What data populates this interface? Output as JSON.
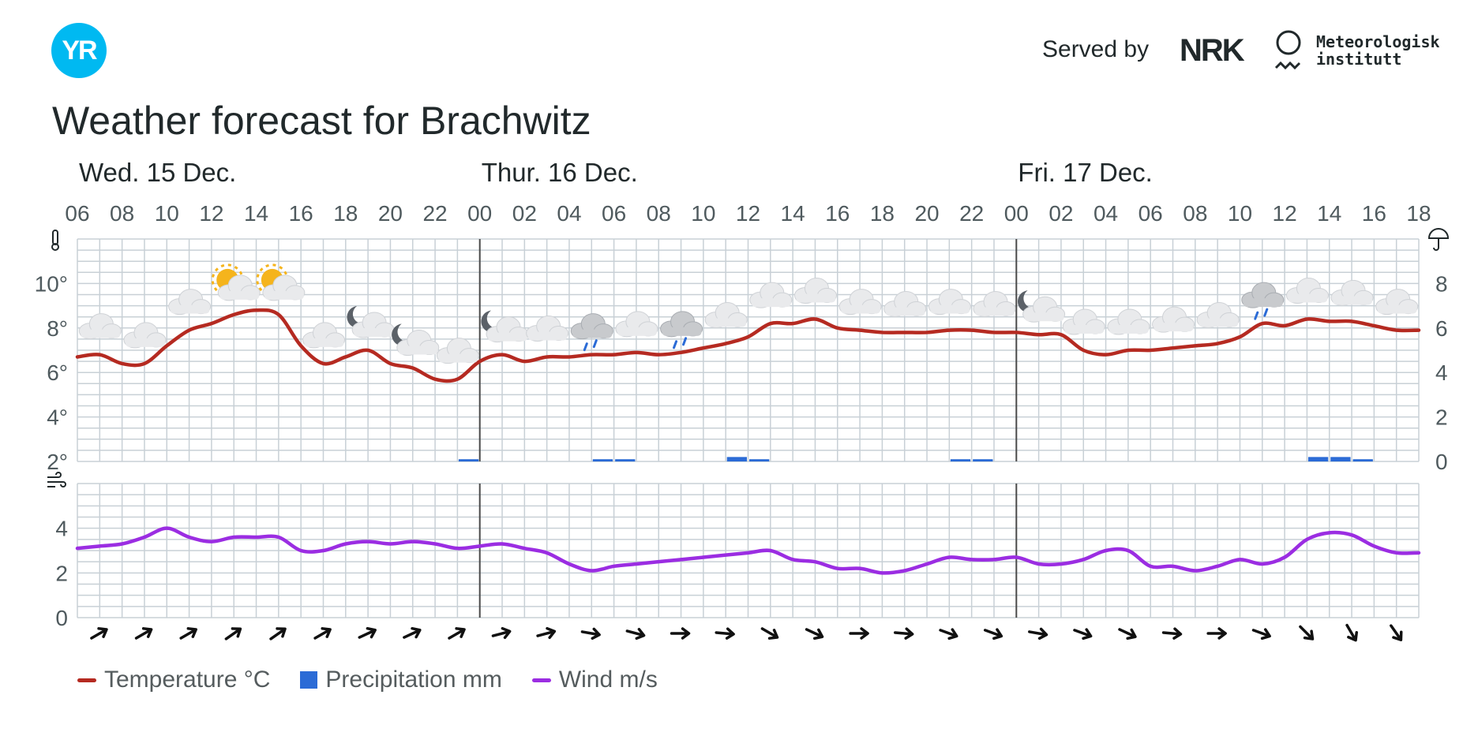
{
  "header": {
    "logo_text": "YR",
    "served_by": "Served by",
    "nrk_text": "NRK",
    "met_line1": "Meteorologisk",
    "met_line2": "institutt"
  },
  "title": "Weather forecast for Brachwitz",
  "colors": {
    "temperature": "#b52a21",
    "precipitation": "#2b6bd6",
    "wind": "#9b2de2",
    "grid": "#c8d0d6",
    "day_line": "#4a4a4a",
    "logo": "#00b9f1"
  },
  "chart_data": {
    "type": "line",
    "days": [
      {
        "label": "Wed. 15 Dec.",
        "start_index": 0
      },
      {
        "label": "Thur. 16 Dec.",
        "start_index": 18
      },
      {
        "label": "Fri. 17 Dec.",
        "start_index": 42
      }
    ],
    "time_ticks": [
      "06",
      "08",
      "10",
      "12",
      "14",
      "16",
      "18",
      "20",
      "22",
      "00",
      "02",
      "04",
      "06",
      "08",
      "10",
      "12",
      "14",
      "16",
      "18",
      "20",
      "22",
      "00",
      "02",
      "04",
      "06",
      "08",
      "10",
      "12",
      "14",
      "16",
      "18"
    ],
    "hours": [
      "06",
      "07",
      "08",
      "09",
      "10",
      "11",
      "12",
      "13",
      "14",
      "15",
      "16",
      "17",
      "18",
      "19",
      "20",
      "21",
      "22",
      "23",
      "00",
      "01",
      "02",
      "03",
      "04",
      "05",
      "06",
      "07",
      "08",
      "09",
      "10",
      "11",
      "12",
      "13",
      "14",
      "15",
      "16",
      "17",
      "18",
      "19",
      "20",
      "21",
      "22",
      "23",
      "00",
      "01",
      "02",
      "03",
      "04",
      "05",
      "06",
      "07",
      "08",
      "09",
      "10",
      "11",
      "12",
      "13",
      "14",
      "15",
      "16",
      "17",
      "18"
    ],
    "temperature": {
      "name": "Temperature °C",
      "axis_ticks": [
        "2°",
        "4°",
        "6°",
        "8°",
        "10°"
      ],
      "ylim": [
        2,
        12
      ],
      "values": [
        6.7,
        6.8,
        6.4,
        6.4,
        7.2,
        7.9,
        8.2,
        8.6,
        8.8,
        8.6,
        7.2,
        6.4,
        6.7,
        7.0,
        6.4,
        6.2,
        5.7,
        5.7,
        6.5,
        6.8,
        6.5,
        6.7,
        6.7,
        6.8,
        6.8,
        6.9,
        6.8,
        6.9,
        7.1,
        7.3,
        7.6,
        8.2,
        8.2,
        8.4,
        8.0,
        7.9,
        7.8,
        7.8,
        7.8,
        7.9,
        7.9,
        7.8,
        7.8,
        7.7,
        7.7,
        7.0,
        6.8,
        7.0,
        7.0,
        7.1,
        7.2,
        7.3,
        7.6,
        8.2,
        8.1,
        8.4,
        8.3,
        8.3,
        8.1,
        7.9,
        7.9
      ]
    },
    "precipitation": {
      "name": "Precipitation mm",
      "axis_ticks": [
        "0",
        "2",
        "4",
        "6",
        "8"
      ],
      "ylim": [
        0,
        10
      ],
      "values": [
        0,
        0,
        0,
        0,
        0,
        0,
        0,
        0,
        0,
        0,
        0,
        0,
        0,
        0,
        0,
        0,
        0,
        0.1,
        0,
        0,
        0,
        0,
        0,
        0.1,
        0.1,
        0,
        0,
        0,
        0,
        0.2,
        0.1,
        0,
        0,
        0,
        0,
        0,
        0,
        0,
        0,
        0.1,
        0.1,
        0,
        0,
        0,
        0,
        0,
        0,
        0,
        0,
        0,
        0,
        0,
        0,
        0,
        0,
        0.2,
        0.2,
        0.1,
        0,
        0,
        0
      ]
    },
    "wind": {
      "name": "Wind m/s",
      "axis_ticks": [
        "0",
        "2",
        "4"
      ],
      "ylim": [
        0,
        6
      ],
      "values": [
        3.1,
        3.2,
        3.3,
        3.6,
        4.0,
        3.6,
        3.4,
        3.6,
        3.6,
        3.6,
        3.0,
        3.0,
        3.3,
        3.4,
        3.3,
        3.4,
        3.3,
        3.1,
        3.2,
        3.3,
        3.1,
        2.9,
        2.4,
        2.1,
        2.3,
        2.4,
        2.5,
        2.6,
        2.7,
        2.8,
        2.9,
        3.0,
        2.6,
        2.5,
        2.2,
        2.2,
        2.0,
        2.1,
        2.4,
        2.7,
        2.6,
        2.6,
        2.7,
        2.4,
        2.4,
        2.6,
        3.0,
        3.0,
        2.3,
        2.3,
        2.1,
        2.3,
        2.6,
        2.4,
        2.7,
        3.5,
        3.8,
        3.7,
        3.2,
        2.9,
        2.9
      ]
    },
    "weather_symbols": [
      {
        "hour": "06",
        "icon": "cloud"
      },
      {
        "hour": "08",
        "icon": "cloud"
      },
      {
        "hour": "10",
        "icon": "cloud"
      },
      {
        "hour": "12",
        "icon": "partly-sunny"
      },
      {
        "hour": "14",
        "icon": "partly-sunny"
      },
      {
        "hour": "16",
        "icon": "cloud"
      },
      {
        "hour": "18",
        "icon": "partly-moon"
      },
      {
        "hour": "20",
        "icon": "partly-moon"
      },
      {
        "hour": "22",
        "icon": "cloud"
      },
      {
        "hour": "00",
        "icon": "partly-moon"
      },
      {
        "hour": "02",
        "icon": "cloud"
      },
      {
        "hour": "04",
        "icon": "rain-cloud"
      },
      {
        "hour": "06",
        "icon": "cloud"
      },
      {
        "hour": "08",
        "icon": "rain-cloud"
      },
      {
        "hour": "10",
        "icon": "cloud"
      },
      {
        "hour": "12",
        "icon": "cloud"
      },
      {
        "hour": "14",
        "icon": "cloud"
      },
      {
        "hour": "16",
        "icon": "cloud"
      },
      {
        "hour": "18",
        "icon": "cloud"
      },
      {
        "hour": "20",
        "icon": "cloud"
      },
      {
        "hour": "22",
        "icon": "cloud"
      },
      {
        "hour": "00",
        "icon": "partly-moon"
      },
      {
        "hour": "02",
        "icon": "cloud"
      },
      {
        "hour": "04",
        "icon": "cloud"
      },
      {
        "hour": "06",
        "icon": "cloud"
      },
      {
        "hour": "08",
        "icon": "cloud"
      },
      {
        "hour": "10",
        "icon": "rain-cloud"
      },
      {
        "hour": "12",
        "icon": "cloud"
      },
      {
        "hour": "14",
        "icon": "cloud"
      },
      {
        "hour": "16",
        "icon": "cloud"
      }
    ],
    "wind_direction_deg": [
      -30,
      -30,
      -30,
      -35,
      -35,
      -30,
      -25,
      -25,
      -30,
      -15,
      -15,
      10,
      15,
      0,
      5,
      30,
      25,
      0,
      5,
      20,
      20,
      10,
      20,
      25,
      5,
      0,
      20,
      45,
      60,
      55
    ],
    "legend_position": "bottom-left"
  },
  "legend": {
    "temperature": "Temperature °C",
    "precipitation": "Precipitation mm",
    "wind": "Wind m/s"
  }
}
